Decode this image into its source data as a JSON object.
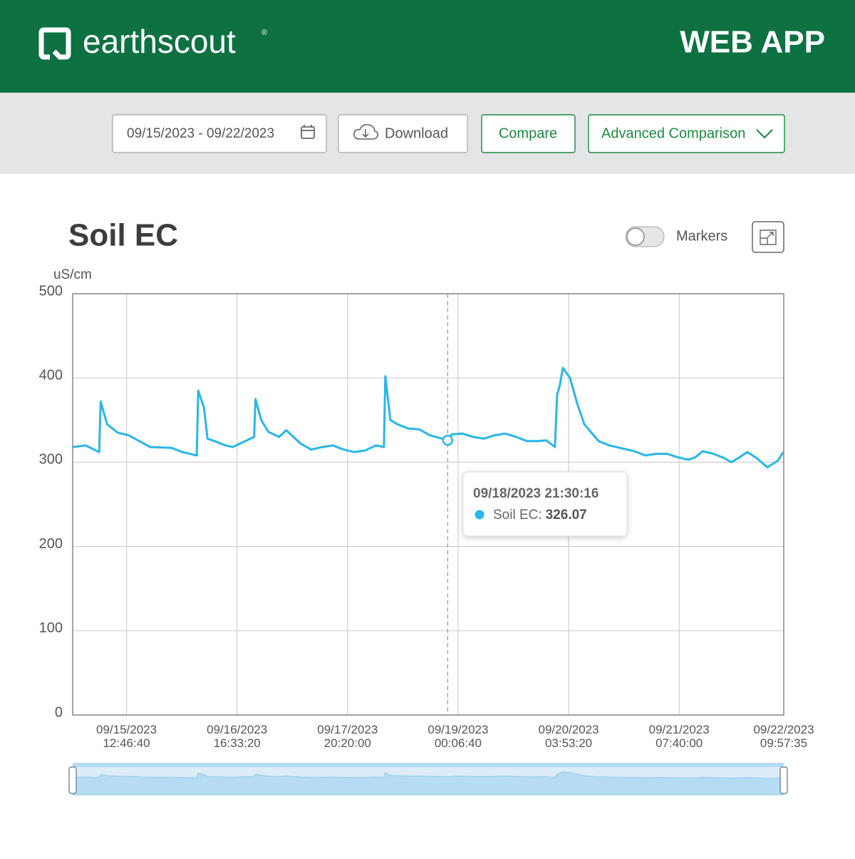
{
  "header": {
    "logo": "earthscout",
    "logo_mark": "®",
    "app_label": "WEB APP"
  },
  "toolbar": {
    "date_range": "09/15/2023 - 09/22/2023",
    "download": "Download",
    "compare": "Compare",
    "advanced_comparison": "Advanced Comparison"
  },
  "markers_toggle": "Markers",
  "chart_data": {
    "type": "line",
    "title": "Soil EC",
    "y_label": "uS/cm",
    "xlim": [
      "09/14/2023 23:15:00",
      "09/22/2023 09:57:35"
    ],
    "xticks": [
      "09/15/2023 12:46:40",
      "09/16/2023 16:33:20",
      "09/17/2023 20:20:00",
      "09/19/2023 00:06:40",
      "09/20/2023 03:53:20",
      "09/21/2023 07:40:00",
      "09/22/2023 09:57:35"
    ],
    "ylim": [
      0,
      500
    ],
    "yticks": [
      0,
      100,
      200,
      300,
      400,
      500
    ],
    "grid": true,
    "x": [
      "09/14/2023 23:20:00",
      "09/15/2023 02:30:00",
      "09/15/2023 05:55:00",
      "09/15/2023 06:17:00",
      "09/15/2023 07:54:00",
      "09/15/2023 10:36:00",
      "09/15/2023 13:18:00",
      "09/15/2023 16:00:00",
      "09/15/2023 18:43:00",
      "09/16/2023 00:07:00",
      "09/16/2023 02:50:00",
      "09/16/2023 06:26:00",
      "09/16/2023 06:48:00",
      "09/16/2023 08:14:00",
      "09/16/2023 09:08:00",
      "09/16/2023 10:56:00",
      "09/16/2023 13:38:00",
      "09/16/2023 15:26:00",
      "09/16/2023 17:14:00",
      "09/16/2023 19:02:00",
      "09/16/2023 20:50:00",
      "09/16/2023 21:12:00",
      "09/16/2023 22:38:00",
      "09/17/2023 00:26:00",
      "09/17/2023 03:08:00",
      "09/17/2023 04:56:00",
      "09/17/2023 06:44:00",
      "09/17/2023 08:33:00",
      "09/17/2023 11:15:00",
      "09/17/2023 13:57:00",
      "09/17/2023 16:40:00",
      "09/17/2023 19:22:00",
      "09/17/2023 22:04:00",
      "09/18/2023 00:47:00",
      "09/18/2023 03:29:00",
      "09/18/2023 05:28:00",
      "09/18/2023 05:50:00",
      "09/18/2023 07:06:00",
      "09/18/2023 08:54:00",
      "09/18/2023 11:36:00",
      "09/18/2023 14:19:00",
      "09/18/2023 17:01:00",
      "09/18/2023 21:30:16",
      "09/18/2023 22:29:00",
      "09/19/2023 01:11:00",
      "09/19/2023 03:53:00",
      "09/19/2023 06:36:00",
      "09/19/2023 09:18:00",
      "09/19/2023 12:00:00",
      "09/19/2023 14:43:00",
      "09/19/2023 17:25:00",
      "09/19/2023 20:07:00",
      "09/19/2023 22:17:00",
      "09/20/2023 00:27:00",
      "09/20/2023 01:00:00",
      "09/20/2023 01:43:00",
      "09/20/2023 02:26:00",
      "09/20/2023 04:14:00",
      "09/20/2023 06:02:00",
      "09/20/2023 07:50:00",
      "09/20/2023 09:38:00",
      "09/20/2023 11:27:00",
      "09/20/2023 14:09:00",
      "09/20/2023 17:45:00",
      "09/20/2023 20:27:00",
      "09/20/2023 23:09:00",
      "09/21/2023 01:52:00",
      "09/21/2023 04:34:00",
      "09/21/2023 07:16:00",
      "09/21/2023 09:58:00",
      "09/21/2023 11:46:00",
      "09/21/2023 13:35:00",
      "09/21/2023 16:17:00",
      "09/21/2023 18:59:00",
      "09/21/2023 20:47:00",
      "09/21/2023 22:35:00",
      "09/22/2023 00:46:00",
      "09/22/2023 03:08:00",
      "09/22/2023 05:50:00",
      "09/22/2023 08:32:00",
      "09/22/2023 09:50:00"
    ],
    "series": [
      {
        "name": "Soil EC",
        "color": "#29b6e8",
        "values": [
          318,
          320,
          312,
          372,
          345,
          335,
          332,
          325,
          318,
          317,
          312,
          308,
          385,
          365,
          328,
          325,
          320,
          318,
          322,
          326,
          330,
          375,
          350,
          336,
          330,
          338,
          330,
          322,
          315,
          318,
          320,
          315,
          312,
          314,
          320,
          318,
          402,
          350,
          345,
          340,
          339,
          332,
          326.07,
          333,
          334,
          330,
          328,
          332,
          334,
          330,
          325,
          325,
          326,
          318,
          380,
          392,
          412,
          400,
          370,
          345,
          335,
          325,
          320,
          316,
          313,
          308,
          310,
          310,
          306,
          303,
          306,
          313,
          310,
          305,
          300,
          305,
          312,
          305,
          294,
          302,
          312
        ]
      }
    ],
    "tooltip": {
      "x": "09/18/2023 21:30:16",
      "label": "Soil EC:",
      "value": 326.07
    }
  }
}
